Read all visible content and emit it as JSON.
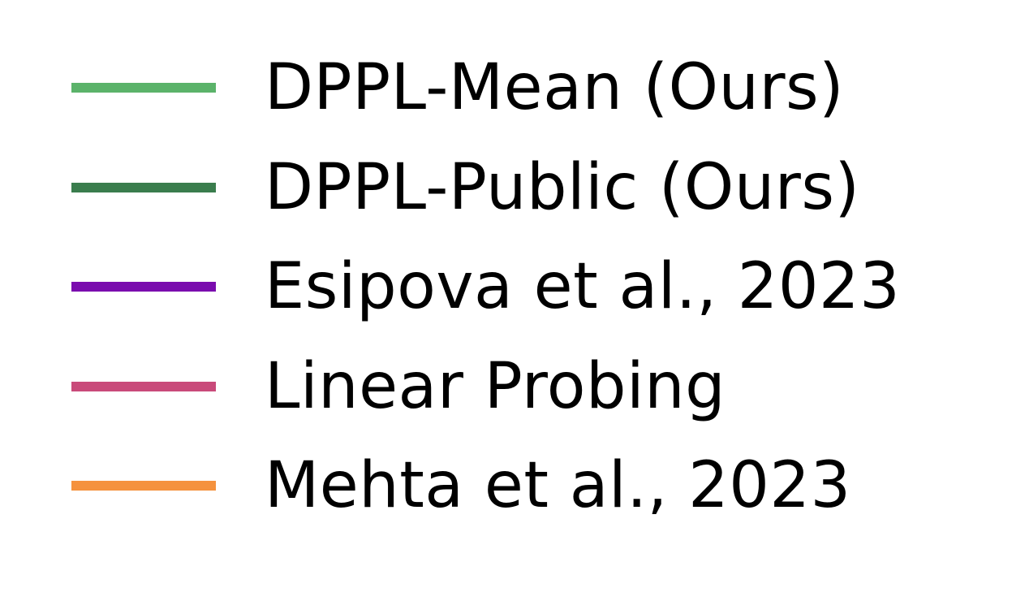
{
  "chart_data": {
    "type": "line",
    "legend": {
      "placement": "center",
      "entries": [
        {
          "label": "DPPL-Mean (Ours)",
          "color": "#5bb36a"
        },
        {
          "label": "DPPL-Public (Ours)",
          "color": "#3a7d4d"
        },
        {
          "label": "Esipova et al., 2023",
          "color": "#7a0cae"
        },
        {
          "label": "Linear Probing",
          "color": "#c94a7a"
        },
        {
          "label": "Mehta et al., 2023",
          "color": "#f5923e"
        }
      ]
    }
  }
}
